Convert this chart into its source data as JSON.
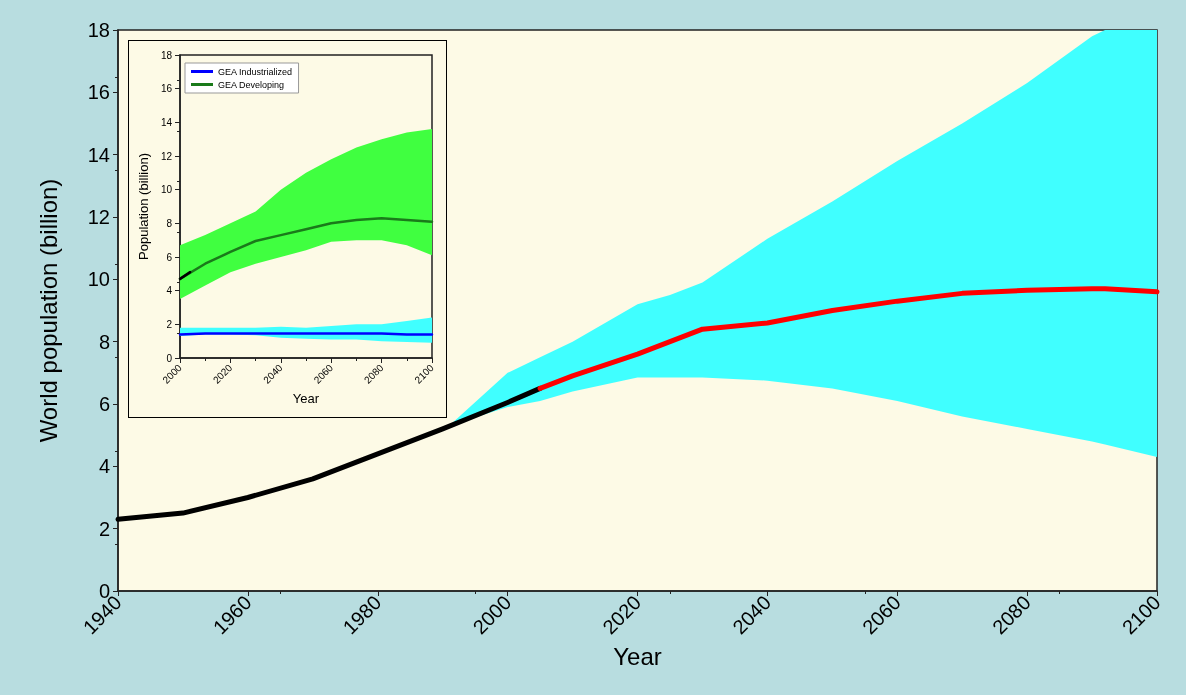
{
  "chart_data": [
    {
      "type": "line",
      "xlabel": "Year",
      "ylabel": "World population (billion)",
      "xlim": [
        1940,
        2100
      ],
      "xticks": [
        1940,
        1960,
        1980,
        2000,
        2020,
        2040,
        2060,
        2080,
        2100
      ],
      "ylim": [
        0,
        18
      ],
      "yticks": [
        0,
        2,
        4,
        6,
        8,
        10,
        12,
        14,
        16,
        18
      ],
      "grid": false,
      "legend": false,
      "series": [
        {
          "color": "#40ffff",
          "x": [
            1991,
            2000,
            2005,
            2010,
            2020,
            2025,
            2030,
            2040,
            2050,
            2060,
            2070,
            2080,
            2090,
            2092,
            2100
          ],
          "values": [
            null,
            null,
            null,
            null,
            null,
            null,
            null,
            null,
            null,
            null,
            null,
            null,
            null,
            null,
            null
          ],
          "lower": [
            5.3,
            5.9,
            6.1,
            6.4,
            6.85,
            6.85,
            6.85,
            6.75,
            6.5,
            6.1,
            5.6,
            5.2,
            4.8,
            4.7,
            4.3
          ],
          "upper": [
            5.3,
            7.0,
            7.5,
            8.0,
            9.2,
            9.5,
            9.9,
            11.3,
            12.5,
            13.8,
            15.0,
            16.3,
            17.8,
            18,
            18
          ]
        },
        {
          "color": "#000000",
          "x": [
            1940,
            1950,
            1960,
            1970,
            1980,
            1990,
            2000,
            2005
          ],
          "values": [
            2.3,
            2.5,
            3.0,
            3.6,
            4.4,
            5.2,
            6.05,
            6.5
          ]
        },
        {
          "color": "#ff0000",
          "x": [
            2005,
            2010,
            2020,
            2025,
            2030,
            2040,
            2050,
            2060,
            2070,
            2080,
            2090,
            2092,
            2100
          ],
          "values": [
            6.5,
            6.9,
            7.6,
            8.0,
            8.4,
            8.6,
            9.0,
            9.3,
            9.55,
            9.65,
            9.7,
            9.7,
            9.6
          ]
        }
      ]
    },
    {
      "type": "line",
      "xlabel": "Year",
      "ylabel": "Population (billion)",
      "xlim": [
        2000,
        2100
      ],
      "xticks": [
        2000,
        2020,
        2040,
        2060,
        2080,
        2100
      ],
      "ylim": [
        0,
        18
      ],
      "yticks": [
        0,
        2,
        4,
        6,
        8,
        10,
        12,
        14,
        16,
        18
      ],
      "grid": false,
      "legend": "top left",
      "series": [
        {
          "color": "#40ffff",
          "x": [
            2000,
            2010,
            2020,
            2030,
            2040,
            2050,
            2060,
            2070,
            2080,
            2090,
            2100
          ],
          "values": [
            null,
            null,
            null,
            null,
            null,
            null,
            null,
            null,
            null,
            null,
            null
          ],
          "lower": [
            1.3,
            1.4,
            1.4,
            1.35,
            1.2,
            1.15,
            1.1,
            1.1,
            1.0,
            0.95,
            0.9
          ],
          "upper": [
            1.8,
            1.8,
            1.8,
            1.8,
            1.85,
            1.8,
            1.9,
            2.0,
            2.0,
            2.2,
            2.4
          ]
        },
        {
          "color": "#40ff40",
          "x": [
            2000,
            2010,
            2020,
            2030,
            2040,
            2050,
            2060,
            2070,
            2080,
            2090,
            2100
          ],
          "values": [
            null,
            null,
            null,
            null,
            null,
            null,
            null,
            null,
            null,
            null,
            null
          ],
          "lower": [
            3.5,
            4.3,
            5.1,
            5.6,
            6.0,
            6.4,
            6.9,
            7.0,
            7.0,
            6.7,
            6.1
          ],
          "upper": [
            6.7,
            7.3,
            8.0,
            8.7,
            10.0,
            11.0,
            11.8,
            12.5,
            13.0,
            13.4,
            13.6
          ]
        },
        {
          "name": "GEA Industrialized",
          "color": "#0000ff",
          "x": [
            2000,
            2010,
            2020,
            2030,
            2040,
            2050,
            2060,
            2070,
            2080,
            2090,
            2100
          ],
          "values": [
            1.4,
            1.45,
            1.45,
            1.45,
            1.45,
            1.45,
            1.45,
            1.45,
            1.45,
            1.4,
            1.4
          ]
        },
        {
          "name": "GEA Developing",
          "color": "#1a7a1a",
          "x": [
            2000,
            2010,
            2020,
            2030,
            2040,
            2050,
            2060,
            2070,
            2080,
            2090,
            2100
          ],
          "values": [
            4.7,
            5.6,
            6.3,
            6.95,
            7.3,
            7.65,
            8.0,
            8.2,
            8.3,
            8.2,
            8.1
          ]
        },
        {
          "color": "#000000",
          "x": [
            2000,
            2004
          ],
          "values": [
            4.7,
            5.1
          ]
        }
      ]
    }
  ]
}
